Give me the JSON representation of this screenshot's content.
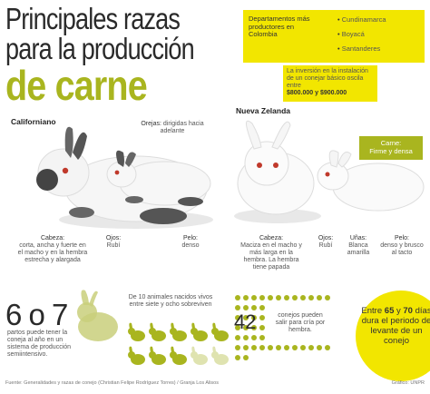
{
  "title": {
    "line1": "Principales razas",
    "line2": "para la producción",
    "line3": "de carne"
  },
  "departments": {
    "heading": "Departamentos más productores en Colombia",
    "items": [
      "Cundinamarca",
      "Boyacá",
      "Santanderes"
    ]
  },
  "investment": {
    "text": "La inversión en la instalación de un conejar básico oscila entre",
    "value": "$800.000 y $900.000"
  },
  "californiano": {
    "name": "Californiano",
    "orejas_label": "Orejas:",
    "orejas": "dirigidas hacia adelante",
    "cabeza_label": "Cabeza:",
    "cabeza": "corta, ancha y fuerte en el macho y en la hembra estrecha y alargada",
    "ojos_label": "Ojos:",
    "ojos": "Rubí",
    "pelo_label": "Pelo:",
    "pelo": "denso"
  },
  "nueva_zelanda": {
    "name": "Nueva Zelanda",
    "carne_label": "Carne:",
    "carne": "Firme y densa",
    "cabeza_label": "Cabeza:",
    "cabeza": "Maciza en el macho y más larga en la hembra. La hembra tiene papada",
    "ojos_label": "Ojos:",
    "ojos": "Rubí",
    "unas_label": "Uñas:",
    "unas": "Blanca amarilla",
    "pelo_label": "Pelo:",
    "pelo": "denso y brusco al tacto"
  },
  "stats": {
    "births_value": "6 o 7",
    "births_text": "partos puede tener la coneja al año en un sistema de producción semiintensivo.",
    "survival_text": "De 10 animales nacidos vivos entre siete y ocho sobreviven",
    "survival_total": 10,
    "survival_alive": 8,
    "kits_value": "42",
    "kits_text": "conejos pueden salir para cría por hembra.",
    "fattening_pre": "Entre",
    "fattening_a": "65",
    "fattening_mid": "y",
    "fattening_b": "70",
    "fattening_post": "días dura el periodo de levante de un conejo"
  },
  "footer": {
    "source": "Fuente: Generalidades y razas de conejo (Christian Felipe Rodríguez Torres) / Granja Los Alisos",
    "credit": "Gráfico: UNPR"
  },
  "colors": {
    "accent_yellow": "#f2e600",
    "accent_olive": "#a9b51f",
    "text_dark": "#2a2a2a"
  }
}
